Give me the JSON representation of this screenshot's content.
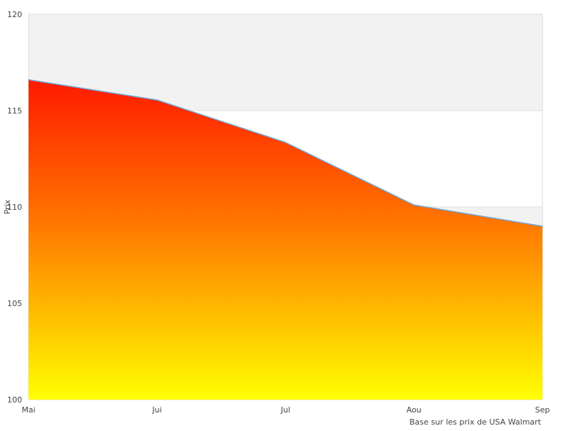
{
  "chart_data": {
    "type": "area",
    "categories": [
      "Mai",
      "Jui",
      "Jul",
      "Aou",
      "Sep"
    ],
    "values": [
      116.6,
      115.55,
      113.35,
      110.1,
      109.0
    ],
    "title": "",
    "xlabel": "Base sur les prix de USA Walmart",
    "ylabel": "Prix",
    "ylim": [
      100,
      120
    ],
    "yticks": [
      100,
      105,
      110,
      115,
      120
    ],
    "grid": "alternating-bands",
    "legend": "none",
    "colors": {
      "band": "#f2f2f2",
      "axis": "#dddddd",
      "line": "#6fa8dc",
      "fill_top": "#ff1a00",
      "fill_mid": "#ff7700",
      "fill_bottom": "#ffff00"
    }
  }
}
